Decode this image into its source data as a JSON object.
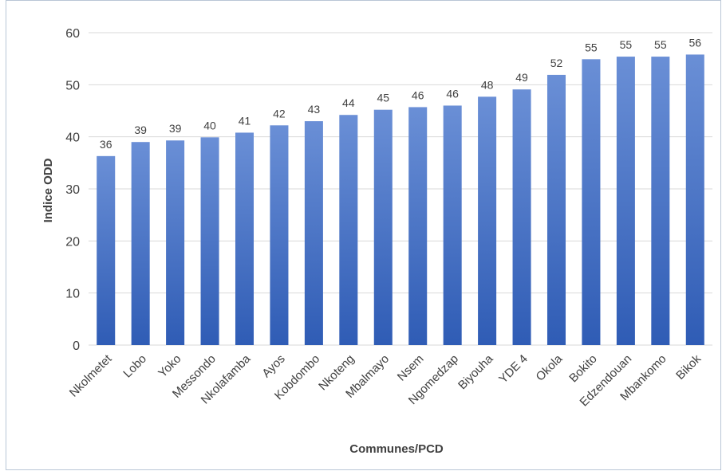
{
  "chart_data": {
    "type": "bar",
    "title": "",
    "xlabel": "Communes/PCD",
    "ylabel": "Indice ODD",
    "ylim": [
      0,
      60
    ],
    "yticks": [
      0,
      10,
      20,
      30,
      40,
      50,
      60
    ],
    "grid": true,
    "legend": "none",
    "bar_color_top": "#6a8fd6",
    "bar_color_bottom": "#2f5cb5",
    "categories": [
      "Nkolmetet",
      "Lobo",
      "Yoko",
      "Messondo",
      "Nkolafamba",
      "Ayos",
      "Kobdombo",
      "Nkoteng",
      "Mbalmayo",
      "Nsem",
      "Ngomedzap",
      "Biyouha",
      "YDE 4",
      "Okola",
      "Bokito",
      "Edzendouan",
      "Mbankomo",
      "Bikok"
    ],
    "values": [
      36.3,
      39.0,
      39.3,
      39.9,
      40.8,
      42.2,
      43.0,
      44.2,
      45.2,
      45.7,
      46.0,
      47.7,
      49.1,
      51.9,
      54.9,
      55.4,
      55.4,
      55.8
    ],
    "data_labels": [
      "36",
      "39",
      "39",
      "40",
      "41",
      "42",
      "43",
      "44",
      "45",
      "46",
      "46",
      "48",
      "49",
      "52",
      "55",
      "55",
      "55",
      "56"
    ]
  }
}
